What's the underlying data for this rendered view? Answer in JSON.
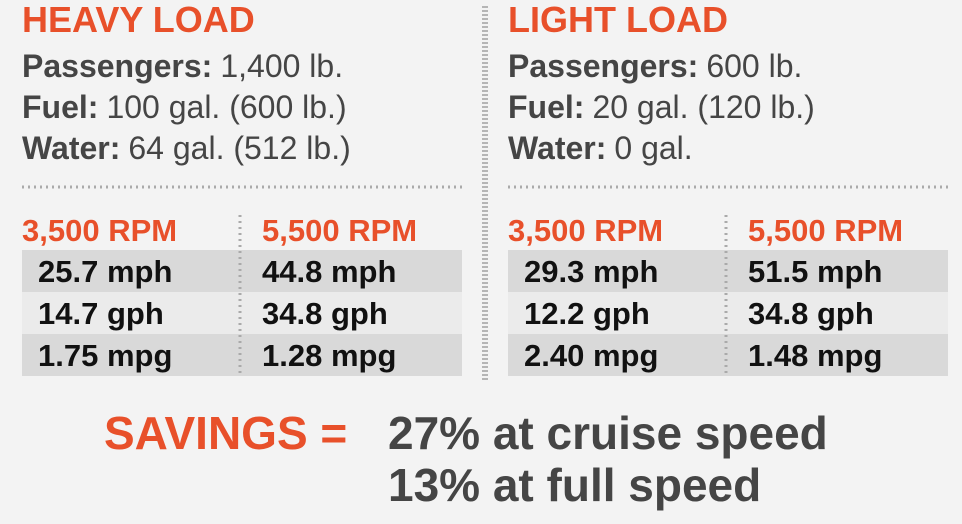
{
  "panels": [
    {
      "title": "HEAVY LOAD",
      "specs": [
        {
          "label": "Passengers:",
          "value": "1,400 lb."
        },
        {
          "label": "Fuel:",
          "value": "100 gal. (600 lb.)"
        },
        {
          "label": "Water:",
          "value": "64 gal. (512 lb.)"
        }
      ],
      "columns": [
        {
          "header": "3,500 RPM",
          "rows": [
            "25.7 mph",
            "14.7 gph",
            "1.75 mpg"
          ]
        },
        {
          "header": "5,500 RPM",
          "rows": [
            "44.8 mph",
            "34.8 gph",
            "1.28 mpg"
          ]
        }
      ]
    },
    {
      "title": "LIGHT LOAD",
      "specs": [
        {
          "label": "Passengers:",
          "value": "600 lb."
        },
        {
          "label": "Fuel:",
          "value": "20 gal. (120 lb.)"
        },
        {
          "label": "Water:",
          "value": "0 gal."
        }
      ],
      "columns": [
        {
          "header": "3,500 RPM",
          "rows": [
            "29.3 mph",
            "12.2 gph",
            "2.40 mpg"
          ]
        },
        {
          "header": "5,500 RPM",
          "rows": [
            "51.5 mph",
            "34.8 gph",
            "1.48 mpg"
          ]
        }
      ]
    }
  ],
  "savings": {
    "label": "SAVINGS =",
    "lines": [
      "27% at cruise speed",
      "13% at full speed"
    ]
  }
}
